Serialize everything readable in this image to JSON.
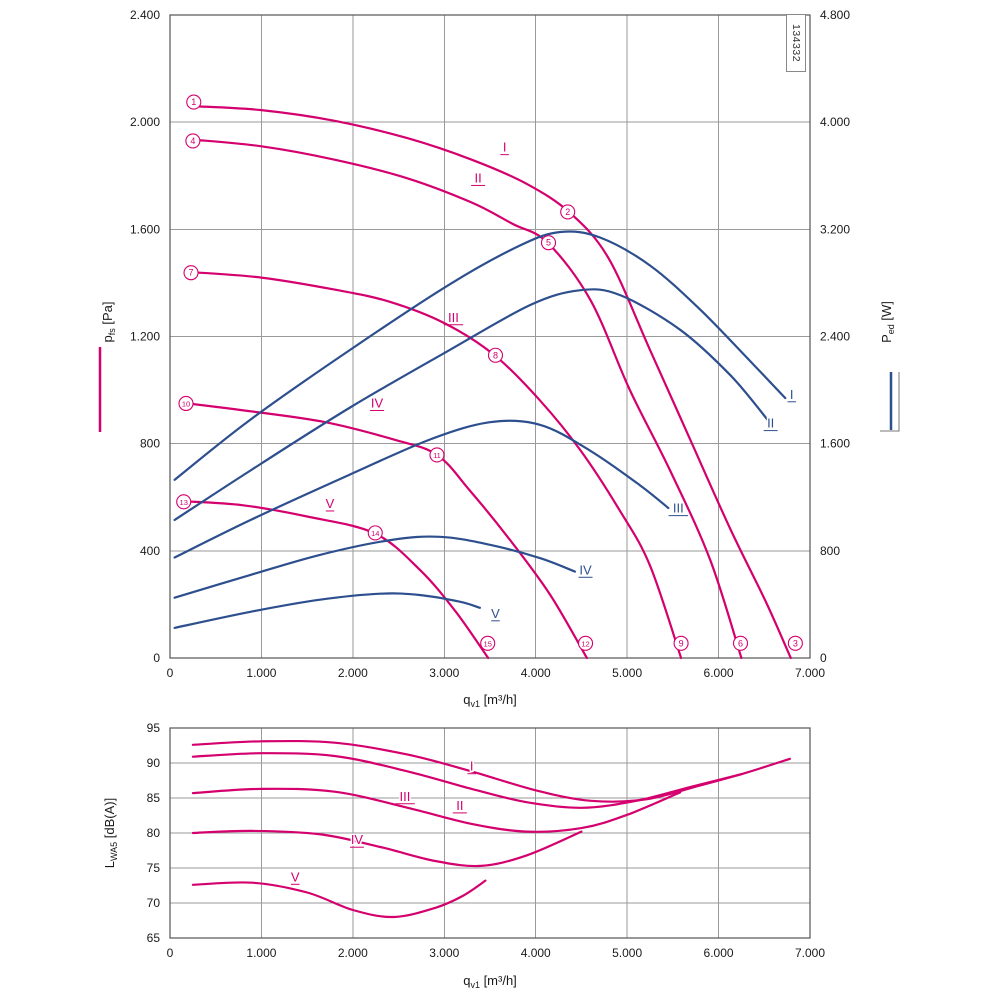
{
  "doc_number": "134332",
  "colors": {
    "pink": "#d4006e",
    "blue": "#2d4f8e",
    "grid": "#9a9a9a",
    "axis": "#555555",
    "text": "#1a1a1a"
  },
  "chart_data": [
    {
      "type": "line",
      "name": "pressure-and-power-vs-flow",
      "x": {
        "main": "q",
        "sub": "v1",
        "unit": "[m³/h]",
        "min": 0,
        "max": 7000,
        "step": 1000,
        "ticks": [
          "0",
          "1.000",
          "2.000",
          "3.000",
          "4.000",
          "5.000",
          "6.000",
          "7.000"
        ]
      },
      "y_left": {
        "main": "p",
        "sub": "fs",
        "unit": "[Pa]",
        "min": 0,
        "max": 2400,
        "step": 400,
        "ticks": [
          "0",
          "400",
          "800",
          "1.200",
          "1.600",
          "2.000",
          "2.400"
        ]
      },
      "y_right": {
        "main": "P",
        "sub": "ed",
        "unit": "[W]",
        "min": 0,
        "max": 4800,
        "step": 800,
        "ticks": [
          "0",
          "800",
          "1.600",
          "2.400",
          "3.200",
          "4.000",
          "4.800"
        ]
      },
      "series": [
        {
          "name": "I",
          "curve": "pressure",
          "axis": "left",
          "color": "pink",
          "label_at": [
            3660,
            1890
          ],
          "points": [
            [
              250,
              2060
            ],
            [
              1000,
              2045
            ],
            [
              1800,
              2005
            ],
            [
              2600,
              1940
            ],
            [
              3300,
              1860
            ],
            [
              3900,
              1770
            ],
            [
              4380,
              1660
            ],
            [
              4800,
              1490
            ],
            [
              5250,
              1150
            ],
            [
              5690,
              815
            ],
            [
              6130,
              480
            ],
            [
              6510,
              215
            ],
            [
              6790,
              0
            ]
          ]
        },
        {
          "name": "II",
          "curve": "pressure",
          "axis": "left",
          "color": "pink",
          "label_at": [
            3370,
            1775
          ],
          "points": [
            [
              250,
              1935
            ],
            [
              1000,
              1910
            ],
            [
              1800,
              1860
            ],
            [
              2600,
              1790
            ],
            [
              3300,
              1700
            ],
            [
              3750,
              1620
            ],
            [
              4130,
              1550
            ],
            [
              4600,
              1335
            ],
            [
              5030,
              1000
            ],
            [
              5470,
              700
            ],
            [
              5910,
              365
            ],
            [
              6250,
              0
            ]
          ]
        },
        {
          "name": "III",
          "curve": "pressure",
          "axis": "left",
          "color": "pink",
          "label_at": [
            3100,
            1255
          ],
          "points": [
            [
              250,
              1440
            ],
            [
              1000,
              1420
            ],
            [
              1800,
              1375
            ],
            [
              2400,
              1330
            ],
            [
              3000,
              1250
            ],
            [
              3550,
              1130
            ],
            [
              4050,
              960
            ],
            [
              4490,
              775
            ],
            [
              4920,
              550
            ],
            [
              5250,
              345
            ],
            [
              5590,
              0
            ]
          ]
        },
        {
          "name": "IV",
          "curve": "pressure",
          "axis": "left",
          "color": "pink",
          "label_at": [
            2265,
            935
          ],
          "points": [
            [
              200,
              950
            ],
            [
              900,
              920
            ],
            [
              1700,
              880
            ],
            [
              2450,
              815
            ],
            [
              2920,
              758
            ],
            [
              3280,
              625
            ],
            [
              3720,
              440
            ],
            [
              4160,
              235
            ],
            [
              4560,
              0
            ]
          ]
        },
        {
          "name": "V",
          "curve": "pressure",
          "axis": "left",
          "color": "pink",
          "label_at": [
            1750,
            560
          ],
          "points": [
            [
              150,
              585
            ],
            [
              800,
              570
            ],
            [
              1500,
              528
            ],
            [
              2240,
              465
            ],
            [
              2730,
              330
            ],
            [
              3120,
              175
            ],
            [
              3480,
              0
            ]
          ]
        },
        {
          "name": "I",
          "curve": "power",
          "axis": "right",
          "color": "blue",
          "label_at": [
            6800,
            1935
          ],
          "points": [
            [
              50,
              1330
            ],
            [
              880,
              1780
            ],
            [
              1970,
              2300
            ],
            [
              3060,
              2790
            ],
            [
              3830,
              3080
            ],
            [
              4270,
              3180
            ],
            [
              4700,
              3140
            ],
            [
              5250,
              2930
            ],
            [
              5800,
              2600
            ],
            [
              6340,
              2220
            ],
            [
              6730,
              1940
            ]
          ]
        },
        {
          "name": "II",
          "curve": "power",
          "axis": "right",
          "color": "blue",
          "label_at": [
            6570,
            1720
          ],
          "points": [
            [
              50,
              1030
            ],
            [
              880,
              1400
            ],
            [
              1970,
              1870
            ],
            [
              3060,
              2300
            ],
            [
              3940,
              2635
            ],
            [
              4480,
              2745
            ],
            [
              4920,
              2710
            ],
            [
              5580,
              2450
            ],
            [
              6130,
              2110
            ],
            [
              6540,
              1775
            ]
          ]
        },
        {
          "name": "III",
          "curve": "power",
          "axis": "right",
          "color": "blue",
          "label_at": [
            5560,
            1085
          ],
          "points": [
            [
              50,
              750
            ],
            [
              880,
              1030
            ],
            [
              1970,
              1370
            ],
            [
              2840,
              1630
            ],
            [
              3500,
              1760
            ],
            [
              4050,
              1740
            ],
            [
              4590,
              1550
            ],
            [
              5140,
              1290
            ],
            [
              5450,
              1120
            ]
          ]
        },
        {
          "name": "IV",
          "curve": "power",
          "axis": "right",
          "color": "blue",
          "label_at": [
            4545,
            625
          ],
          "points": [
            [
              50,
              450
            ],
            [
              880,
              620
            ],
            [
              1640,
              770
            ],
            [
              2410,
              880
            ],
            [
              2950,
              905
            ],
            [
              3500,
              845
            ],
            [
              4050,
              745
            ],
            [
              4430,
              645
            ]
          ]
        },
        {
          "name": "V",
          "curve": "power",
          "axis": "right",
          "color": "blue",
          "label_at": [
            3560,
            300
          ],
          "points": [
            [
              50,
              225
            ],
            [
              880,
              345
            ],
            [
              1640,
              435
            ],
            [
              2300,
              480
            ],
            [
              2730,
              470
            ],
            [
              3170,
              420
            ],
            [
              3390,
              375
            ]
          ]
        }
      ],
      "point_markers": [
        {
          "n": "1",
          "q": 260,
          "v": 2075
        },
        {
          "n": "2",
          "q": 4350,
          "v": 1665
        },
        {
          "n": "3",
          "q": 6840,
          "v": 55
        },
        {
          "n": "4",
          "q": 250,
          "v": 1930
        },
        {
          "n": "5",
          "q": 4140,
          "v": 1550
        },
        {
          "n": "6",
          "q": 6240,
          "v": 55
        },
        {
          "n": "7",
          "q": 230,
          "v": 1438
        },
        {
          "n": "8",
          "q": 3560,
          "v": 1130
        },
        {
          "n": "9",
          "q": 5590,
          "v": 55
        },
        {
          "n": "10",
          "q": 175,
          "v": 950
        },
        {
          "n": "11",
          "q": 2920,
          "v": 758
        },
        {
          "n": "12",
          "q": 4545,
          "v": 55
        },
        {
          "n": "13",
          "q": 150,
          "v": 583
        },
        {
          "n": "14",
          "q": 2245,
          "v": 467
        },
        {
          "n": "15",
          "q": 3475,
          "v": 55
        }
      ]
    },
    {
      "type": "line",
      "name": "sound-power-vs-flow",
      "x": {
        "main": "q",
        "sub": "v1",
        "unit": "[m³/h]",
        "min": 0,
        "max": 7000,
        "step": 1000,
        "ticks": [
          "0",
          "1.000",
          "2.000",
          "3.000",
          "4.000",
          "5.000",
          "6.000",
          "7.000"
        ]
      },
      "y_left": {
        "main": "L",
        "sub": "WA5",
        "unit": "[dB(A)]",
        "min": 65,
        "max": 95,
        "step": 5,
        "ticks": [
          "65",
          "70",
          "75",
          "80",
          "85",
          "90",
          "95"
        ]
      },
      "series": [
        {
          "name": "I",
          "curve": "noise",
          "axis": "left",
          "color": "pink",
          "label_at": [
            3300,
            88.9
          ],
          "points": [
            [
              250,
              92.6
            ],
            [
              1000,
              93.1
            ],
            [
              1800,
              92.9
            ],
            [
              2600,
              91.2
            ],
            [
              3300,
              88.8
            ],
            [
              4000,
              86.1
            ],
            [
              4600,
              84.6
            ],
            [
              5200,
              84.8
            ],
            [
              5800,
              86.8
            ],
            [
              6300,
              88.6
            ],
            [
              6780,
              90.6
            ]
          ]
        },
        {
          "name": "II",
          "curve": "noise",
          "axis": "left",
          "color": "pink",
          "label_at": [
            3170,
            83.3
          ],
          "points": [
            [
              250,
              90.9
            ],
            [
              1000,
              91.4
            ],
            [
              1800,
              91.0
            ],
            [
              2600,
              88.8
            ],
            [
              3300,
              86.3
            ],
            [
              3900,
              84.4
            ],
            [
              4500,
              83.6
            ],
            [
              5100,
              84.6
            ],
            [
              5700,
              86.6
            ],
            [
              6250,
              88.4
            ]
          ]
        },
        {
          "name": "III",
          "curve": "noise",
          "axis": "left",
          "color": "pink",
          "label_at": [
            2570,
            84.6
          ],
          "points": [
            [
              250,
              85.7
            ],
            [
              1000,
              86.3
            ],
            [
              1800,
              85.9
            ],
            [
              2600,
              83.6
            ],
            [
              3300,
              81.3
            ],
            [
              3900,
              80.2
            ],
            [
              4500,
              80.7
            ],
            [
              5000,
              82.6
            ],
            [
              5580,
              85.8
            ]
          ]
        },
        {
          "name": "IV",
          "curve": "noise",
          "axis": "left",
          "color": "pink",
          "label_at": [
            2045,
            78.4
          ],
          "points": [
            [
              250,
              80.0
            ],
            [
              900,
              80.3
            ],
            [
              1650,
              79.8
            ],
            [
              2300,
              78.0
            ],
            [
              2900,
              76.0
            ],
            [
              3400,
              75.3
            ],
            [
              3900,
              76.8
            ],
            [
              4500,
              80.2
            ]
          ]
        },
        {
          "name": "V",
          "curve": "noise",
          "axis": "left",
          "color": "pink",
          "label_at": [
            1370,
            73.1
          ],
          "points": [
            [
              250,
              72.6
            ],
            [
              900,
              72.9
            ],
            [
              1500,
              71.5
            ],
            [
              2000,
              69.0
            ],
            [
              2450,
              68.0
            ],
            [
              2900,
              69.3
            ],
            [
              3200,
              71.0
            ],
            [
              3450,
              73.2
            ]
          ]
        }
      ]
    }
  ]
}
